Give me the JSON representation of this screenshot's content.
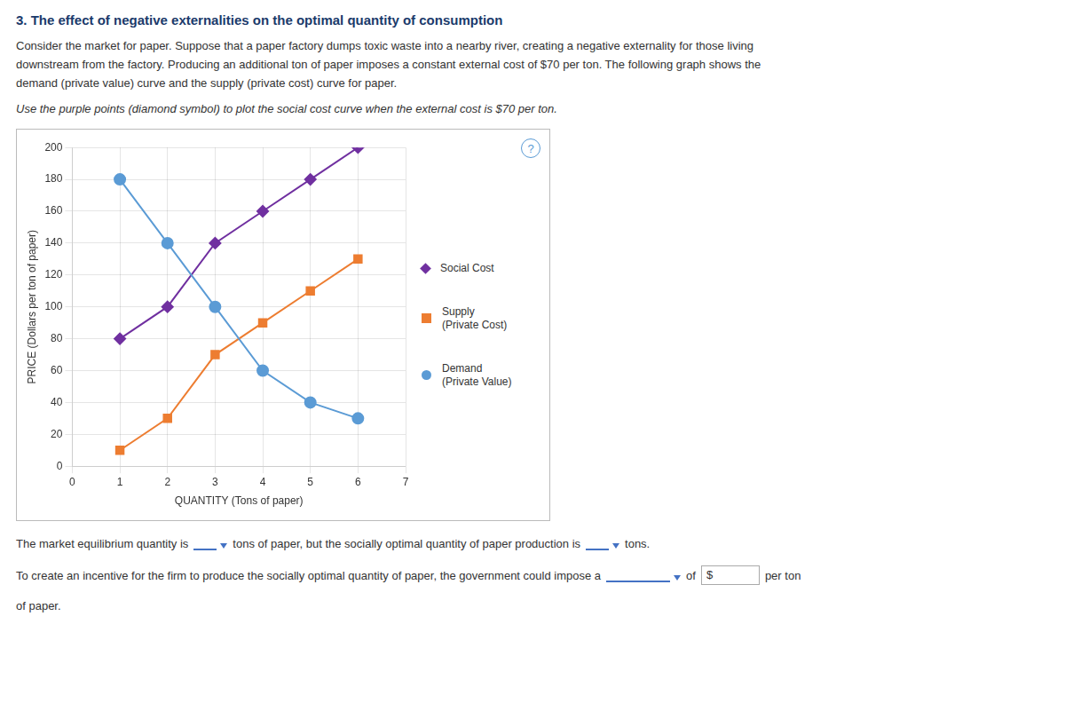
{
  "chart_data": {
    "type": "line",
    "title": "3. The effect of negative externalities on the optimal quantity of consumption",
    "annotations": {
      "above": [
        "Consider the market for paper. Suppose that a paper factory dumps toxic waste into a nearby river, creating a negative externality for those living",
        "downstream from the factory. Producing an additional ton of paper imposes a constant external cost of $70 per ton. The following graph shows the",
        "demand (private value) curve and the supply (private cost) curve for paper.",
        "Use the purple points (diamond symbol) to plot the social cost curve when the external cost is $70 per ton."
      ],
      "corner": "?",
      "below": [
        [
          "The market equilibrium quantity is",
          "tons of paper, but the socially optimal quantity of paper production is",
          "tons."
        ],
        [
          "To create an incentive for the firm to produce the socially optimal quantity of paper, the government could impose a",
          "of",
          "$",
          "per ton"
        ],
        [
          "of paper."
        ]
      ]
    },
    "xlabel": "QUANTITY (Tons of paper)",
    "ylabel": "PRICE (Dollars per ton of paper)",
    "x": [
      1,
      2,
      3,
      4,
      5,
      6
    ],
    "series": [
      {
        "name": "Demand\n(Private Value)",
        "color": "#5b9bd5",
        "marker": "circle",
        "values": [
          180,
          140,
          100,
          60,
          40,
          30
        ]
      },
      {
        "name": "Supply\n(Private Cost)",
        "color": "#ed7d31",
        "marker": "square",
        "values": [
          10,
          30,
          70,
          90,
          110,
          130
        ]
      },
      {
        "name": "Social Cost",
        "color": "#7030a0",
        "marker": "diamond",
        "values": [
          80,
          100,
          140,
          160,
          180,
          200
        ]
      }
    ],
    "xlim": [
      0,
      7
    ],
    "ylim": [
      0,
      200
    ],
    "xticks": [
      0,
      1,
      2,
      3,
      4,
      5,
      6,
      7
    ],
    "yticks": [
      0,
      20,
      40,
      60,
      80,
      100,
      120,
      140,
      160,
      180,
      200
    ],
    "grid": true,
    "legend": "right"
  }
}
